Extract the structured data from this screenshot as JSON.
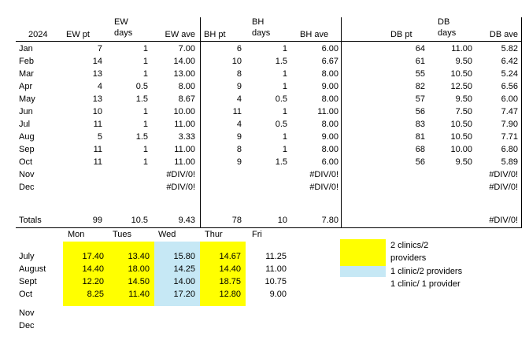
{
  "colors": {
    "two_clinics_two_providers": "#ffff00",
    "one_clinic_two_providers": "#c6e8f5"
  },
  "top_table": {
    "header": {
      "year": "2024",
      "ew_pt": "EW pt",
      "ew_days_top": "EW",
      "ew_days_bottom": "days",
      "ew_ave": "EW ave",
      "bh_pt": "BH pt",
      "bh_days_top": "BH",
      "bh_days_bottom": "days",
      "bh_ave": "BH ave",
      "db_pt": "DB pt",
      "db_days_top": "DB",
      "db_days_bottom": "days",
      "db_ave": "DB ave"
    },
    "rows": [
      {
        "month": "Jan",
        "ew_pt": "7",
        "ew_days": "1",
        "ew_ave": "7.00",
        "bh_pt": "6",
        "bh_days": "1",
        "bh_ave": "6.00",
        "db_pt": "64",
        "db_days": "11.00",
        "db_ave": "5.82"
      },
      {
        "month": "Feb",
        "ew_pt": "14",
        "ew_days": "1",
        "ew_ave": "14.00",
        "bh_pt": "10",
        "bh_days": "1.5",
        "bh_ave": "6.67",
        "db_pt": "61",
        "db_days": "9.50",
        "db_ave": "6.42"
      },
      {
        "month": "Mar",
        "ew_pt": "13",
        "ew_days": "1",
        "ew_ave": "13.00",
        "bh_pt": "8",
        "bh_days": "1",
        "bh_ave": "8.00",
        "db_pt": "55",
        "db_days": "10.50",
        "db_ave": "5.24"
      },
      {
        "month": "Apr",
        "ew_pt": "4",
        "ew_days": "0.5",
        "ew_ave": "8.00",
        "bh_pt": "9",
        "bh_days": "1",
        "bh_ave": "9.00",
        "db_pt": "82",
        "db_days": "12.50",
        "db_ave": "6.56"
      },
      {
        "month": "May",
        "ew_pt": "13",
        "ew_days": "1.5",
        "ew_ave": "8.67",
        "bh_pt": "4",
        "bh_days": "0.5",
        "bh_ave": "8.00",
        "db_pt": "57",
        "db_days": "9.50",
        "db_ave": "6.00"
      },
      {
        "month": "Jun",
        "ew_pt": "10",
        "ew_days": "1",
        "ew_ave": "10.00",
        "bh_pt": "11",
        "bh_days": "1",
        "bh_ave": "11.00",
        "db_pt": "56",
        "db_days": "7.50",
        "db_ave": "7.47"
      },
      {
        "month": "Jul",
        "ew_pt": "11",
        "ew_days": "1",
        "ew_ave": "11.00",
        "bh_pt": "4",
        "bh_days": "0.5",
        "bh_ave": "8.00",
        "db_pt": "83",
        "db_days": "10.50",
        "db_ave": "7.90"
      },
      {
        "month": "Aug",
        "ew_pt": "5",
        "ew_days": "1.5",
        "ew_ave": "3.33",
        "bh_pt": "9",
        "bh_days": "1",
        "bh_ave": "9.00",
        "db_pt": "81",
        "db_days": "10.50",
        "db_ave": "7.71"
      },
      {
        "month": "Sep",
        "ew_pt": "11",
        "ew_days": "1",
        "ew_ave": "11.00",
        "bh_pt": "8",
        "bh_days": "1",
        "bh_ave": "8.00",
        "db_pt": "68",
        "db_days": "10.00",
        "db_ave": "6.80"
      },
      {
        "month": "Oct",
        "ew_pt": "11",
        "ew_days": "1",
        "ew_ave": "11.00",
        "bh_pt": "9",
        "bh_days": "1.5",
        "bh_ave": "6.00",
        "db_pt": "56",
        "db_days": "9.50",
        "db_ave": "5.89"
      },
      {
        "month": "Nov",
        "ew_pt": "",
        "ew_days": "",
        "ew_ave": "#DIV/0!",
        "bh_pt": "",
        "bh_days": "",
        "bh_ave": "#DIV/0!",
        "db_pt": "",
        "db_days": "",
        "db_ave": "#DIV/0!"
      },
      {
        "month": "Dec",
        "ew_pt": "",
        "ew_days": "",
        "ew_ave": "#DIV/0!",
        "bh_pt": "",
        "bh_days": "",
        "bh_ave": "#DIV/0!",
        "db_pt": "",
        "db_days": "",
        "db_ave": "#DIV/0!"
      }
    ],
    "totals": {
      "label": "Totals",
      "ew_pt": "99",
      "ew_days": "10.5",
      "ew_ave": "9.43",
      "bh_pt": "78",
      "bh_days": "10",
      "bh_ave": "7.80",
      "db_pt": "",
      "db_days": "",
      "db_ave": "#DIV/0!"
    }
  },
  "bottom_table": {
    "days": [
      "Mon",
      "Tues",
      "Wed",
      "Thur",
      "Fri"
    ],
    "rows": [
      {
        "month": "July",
        "values": [
          "17.40",
          "13.40",
          "15.80",
          "14.67",
          "11.25"
        ]
      },
      {
        "month": "August",
        "values": [
          "14.40",
          "18.00",
          "14.25",
          "14.40",
          "11.00"
        ]
      },
      {
        "month": "Sept",
        "values": [
          "12.20",
          "14.50",
          "14.00",
          "18.75",
          "10.75"
        ]
      },
      {
        "month": "Oct",
        "values": [
          "8.25",
          "11.40",
          "17.20",
          "12.80",
          "9.00"
        ]
      },
      {
        "month": "Nov",
        "values": [
          "",
          "",
          "",
          "",
          ""
        ]
      },
      {
        "month": "Dec",
        "values": [
          "",
          "",
          "",
          "",
          ""
        ]
      }
    ]
  },
  "legend": {
    "two_clinics_line1": "2 clinics/2",
    "two_clinics_line2": "providers",
    "one_clinic_two": "1 clinic/2 providers",
    "one_clinic_one": "1 clinic/ 1 provider"
  }
}
